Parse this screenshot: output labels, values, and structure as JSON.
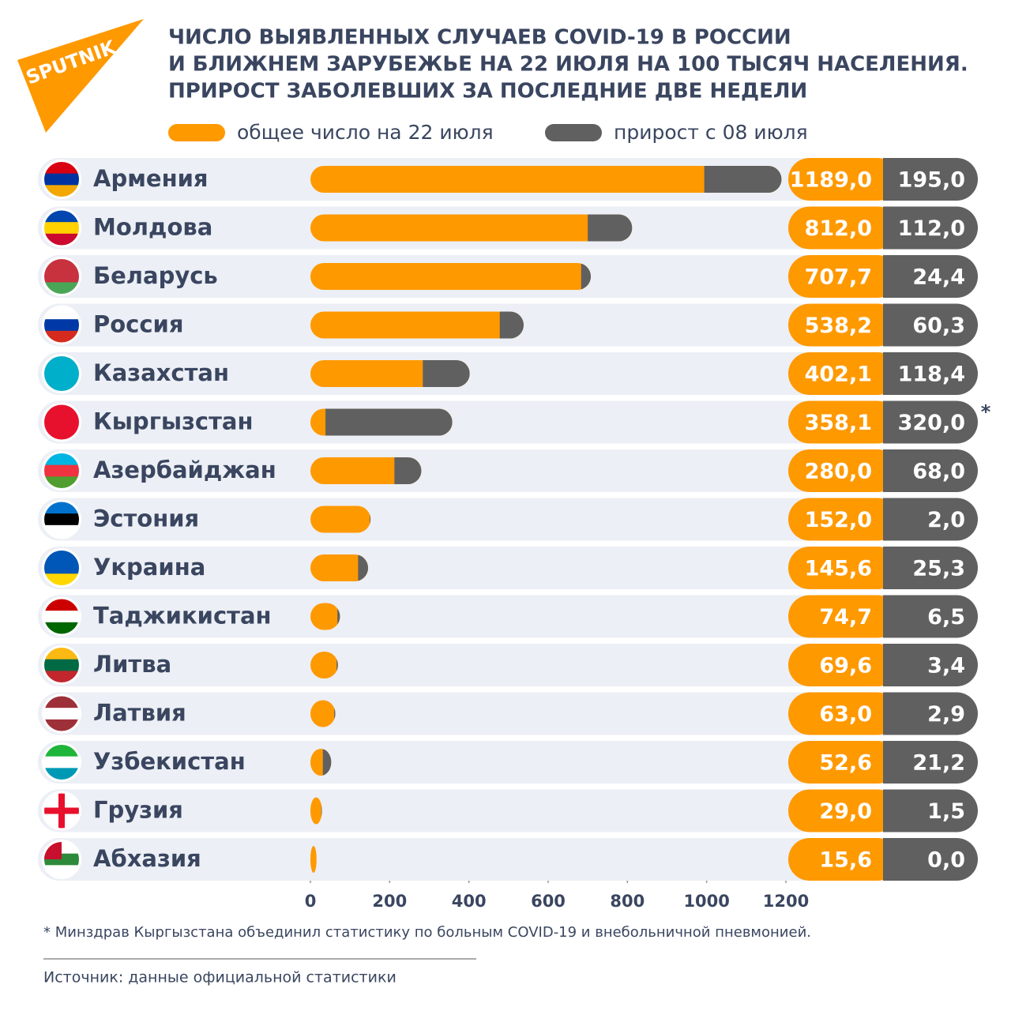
{
  "chart_data": {
    "type": "bar",
    "logo": "SPUTNIK",
    "title": [
      "ЧИСЛО ВЫЯВЛЕННЫХ СЛУЧАЕВ COVID-19 В РОССИИ",
      "И БЛИЖНЕМ ЗАРУБЕЖЬЕ НА 22 ИЮЛЯ НА 100 ТЫСЯЧ НАСЕЛЕНИЯ.",
      "ПРИРОСТ ЗАБОЛЕВШИХ ЗА ПОСЛЕДНИЕ ДВЕ НЕДЕЛИ"
    ],
    "categories": [
      "Армения",
      "Молдова",
      "Беларусь",
      "Россия",
      "Казахстан",
      "Кыргызстан",
      "Азербайджан",
      "Эстония",
      "Украина",
      "Таджикистан",
      "Литва",
      "Латвия",
      "Узбекистан",
      "Грузия",
      "Абхазия"
    ],
    "series": [
      {
        "name": "общее число на 22 июля",
        "color": "#ff9900",
        "values": [
          1189.0,
          812.0,
          707.7,
          538.2,
          402.1,
          358.1,
          280.0,
          152.0,
          145.6,
          74.7,
          69.6,
          63.0,
          52.6,
          29.0,
          15.6
        ],
        "value_labels": [
          "1189,0",
          "812,0",
          "707,7",
          "538,2",
          "402,1",
          "358,1",
          "280,0",
          "152,0",
          "145,6",
          "74,7",
          "69,6",
          "63,0",
          "52,6",
          "29,0",
          "15,6"
        ]
      },
      {
        "name": "прирост с 08 июля",
        "color": "#606060",
        "values": [
          195.0,
          112.0,
          24.4,
          60.3,
          118.4,
          320.0,
          68.0,
          2.0,
          25.3,
          6.5,
          3.4,
          2.9,
          21.2,
          1.5,
          0.0
        ],
        "value_labels": [
          "195,0",
          "112,0",
          "24,4",
          "60,3",
          "118,4",
          "320,0",
          "68,0",
          "2,0",
          "25,3",
          "6,5",
          "3,4",
          "2,9",
          "21,2",
          "1,5",
          "0,0"
        ]
      }
    ],
    "annotations": [
      {
        "category": 5,
        "text": "*"
      }
    ],
    "xlim": [
      0,
      1200
    ],
    "xticks": [
      0,
      200,
      400,
      600,
      800,
      1000,
      1200
    ],
    "footnote": "* Минздрав Кыргызстана объединил статистику по больным COVID-19 и внебольничной пневмонией.",
    "source": "Источник: данные официальной статистики"
  }
}
